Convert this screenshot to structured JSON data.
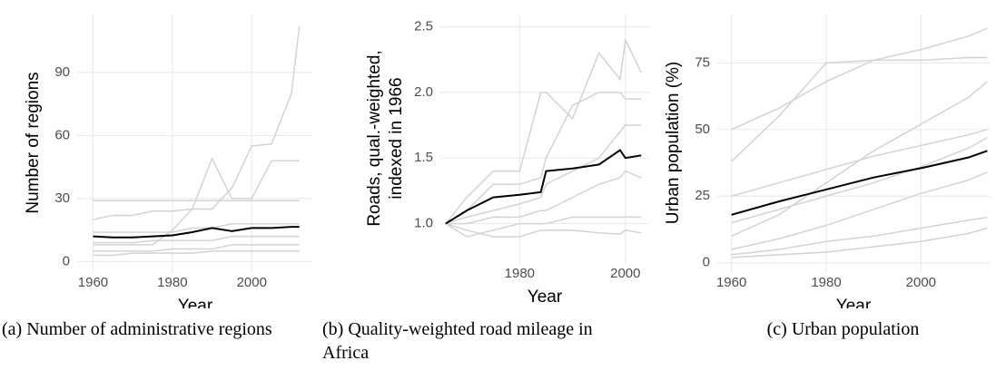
{
  "chart_data": [
    {
      "type": "line",
      "caption": "(a) Number of administrative regions",
      "xlabel": "Year",
      "ylabel": [
        "Number of regions"
      ],
      "x": [
        1960,
        1965,
        1970,
        1975,
        1980,
        1985,
        1990,
        1995,
        2000,
        2005,
        2010,
        2012
      ],
      "xlim": [
        1956,
        2015.5
      ],
      "xticks": [
        1960,
        1980,
        2000
      ],
      "ylim": [
        -5,
        118
      ],
      "yticks": [
        0,
        30,
        60,
        90
      ],
      "grid": true,
      "series": [
        {
          "color": "#d3d3d3",
          "values": [
            8,
            8,
            8,
            8,
            15,
            25,
            25,
            35,
            55,
            56,
            80,
            112
          ]
        },
        {
          "color": "#d3d3d3",
          "values": [
            20,
            22,
            22,
            24,
            24,
            25,
            49,
            30,
            30,
            48,
            48,
            48
          ]
        },
        {
          "color": "#d3d3d3",
          "values": [
            29,
            29,
            29,
            29,
            29,
            29,
            29,
            29,
            29,
            29,
            29,
            29
          ]
        },
        {
          "color": "#d3d3d3",
          "values": [
            5,
            5,
            5,
            5,
            6,
            6,
            6,
            8,
            8,
            8,
            8,
            8
          ]
        },
        {
          "color": "#d3d3d3",
          "values": [
            9,
            9,
            9,
            10,
            10,
            10,
            10,
            12,
            12,
            12,
            12,
            12
          ]
        },
        {
          "color": "#d3d3d3",
          "values": [
            3,
            3,
            4,
            4,
            4,
            4,
            5,
            5,
            5,
            5,
            5,
            5
          ]
        },
        {
          "color": "#d3d3d3",
          "values": [
            14,
            14,
            14,
            14,
            14,
            16,
            16,
            18,
            18,
            18,
            18,
            18
          ]
        },
        {
          "color": "#000000",
          "values": [
            12,
            11.5,
            11.5,
            12,
            12.5,
            14,
            16,
            14.5,
            16,
            16,
            16.5,
            16.5
          ]
        }
      ]
    },
    {
      "type": "line",
      "caption": "(b) Quality-weighted road mileage in Africa",
      "xlabel": "Year",
      "ylabel": [
        "Roads, qual.-weighted,",
        "indexed in 1966"
      ],
      "x": [
        1966,
        1970,
        1975,
        1980,
        1984,
        1985,
        1990,
        1995,
        1999,
        2000,
        2003
      ],
      "xlim": [
        1965,
        2004.5
      ],
      "xticks": [
        1980,
        2000
      ],
      "ylim": [
        0.7,
        2.6
      ],
      "yticks": [
        {
          "value": 1,
          "label": "1.0"
        },
        1.5,
        {
          "value": 2,
          "label": "2.0"
        },
        2.5
      ],
      "grid": true,
      "series": [
        {
          "color": "#d3d3d3",
          "values": [
            1.0,
            1.2,
            1.4,
            1.4,
            2.0,
            2.0,
            1.8,
            2.3,
            2.1,
            2.4,
            2.15
          ]
        },
        {
          "color": "#d3d3d3",
          "values": [
            1.0,
            1.1,
            1.3,
            1.3,
            1.35,
            1.5,
            1.9,
            2.0,
            2.0,
            1.95,
            1.95
          ]
        },
        {
          "color": "#d3d3d3",
          "values": [
            1.0,
            1.0,
            1.05,
            1.05,
            1.1,
            1.1,
            1.2,
            1.3,
            1.35,
            1.4,
            1.35
          ]
        },
        {
          "color": "#d3d3d3",
          "values": [
            1.0,
            0.9,
            0.95,
            1.0,
            1.0,
            1.0,
            1.05,
            1.05,
            1.05,
            1.05,
            1.05
          ]
        },
        {
          "color": "#d3d3d3",
          "values": [
            1.0,
            0.95,
            0.9,
            0.9,
            0.95,
            0.95,
            0.95,
            0.93,
            0.92,
            0.95,
            0.93
          ]
        },
        {
          "color": "#d3d3d3",
          "values": [
            1.0,
            1.05,
            1.1,
            1.15,
            1.2,
            1.3,
            1.4,
            1.5,
            1.7,
            1.75,
            1.75
          ]
        },
        {
          "color": "#000000",
          "values": [
            1.0,
            1.1,
            1.2,
            1.22,
            1.24,
            1.4,
            1.42,
            1.45,
            1.56,
            1.5,
            1.52
          ]
        }
      ]
    },
    {
      "type": "line",
      "caption": "(c) Urban population",
      "xlabel": "Year",
      "ylabel": [
        "Urban population (%)"
      ],
      "x": [
        1960,
        1970,
        1980,
        1990,
        2000,
        2010,
        2014
      ],
      "xlim": [
        1957,
        2014.5
      ],
      "xticks": [
        1960,
        1980,
        2000
      ],
      "ylim": [
        -3.5,
        93.5
      ],
      "yticks": [
        0,
        25,
        50,
        75
      ],
      "grid": true,
      "series": [
        {
          "color": "#d3d3d3",
          "values": [
            50,
            58,
            68,
            76,
            80,
            85,
            88
          ]
        },
        {
          "color": "#d3d3d3",
          "values": [
            38,
            55,
            75,
            76,
            76,
            77,
            77
          ]
        },
        {
          "color": "#d3d3d3",
          "values": [
            10,
            18,
            30,
            42,
            52,
            62,
            68
          ]
        },
        {
          "color": "#d3d3d3",
          "values": [
            5,
            9,
            14,
            20,
            26,
            31,
            34
          ]
        },
        {
          "color": "#d3d3d3",
          "values": [
            3,
            5,
            8,
            10,
            13,
            16,
            17
          ]
        },
        {
          "color": "#d3d3d3",
          "values": [
            15,
            20,
            25,
            30,
            36,
            43,
            47
          ]
        },
        {
          "color": "#d3d3d3",
          "values": [
            2,
            3,
            4,
            6,
            8,
            11,
            13
          ]
        },
        {
          "color": "#d3d3d3",
          "values": [
            25,
            30,
            35,
            40,
            44,
            48,
            50
          ]
        },
        {
          "color": "#000000",
          "values": [
            18,
            23,
            27.5,
            32,
            35.5,
            39.5,
            42
          ]
        }
      ]
    }
  ]
}
